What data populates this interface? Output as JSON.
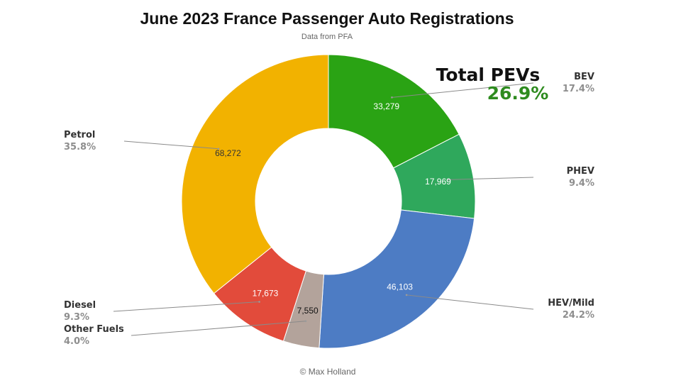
{
  "chart_data": {
    "type": "pie",
    "title": "June 2023 France Passenger Auto Registrations",
    "subtitle": "Data from PFA",
    "credit": "© Max Holland",
    "annotation": {
      "label": "Total PEVs",
      "value": "26.9%",
      "color": "#2e8b1f"
    },
    "slices": [
      {
        "name": "BEV",
        "value": 33279,
        "value_label": "33,279",
        "percent": "17.4%",
        "color": "#2aa314",
        "label_color": "#ffffff",
        "legend_side": "right"
      },
      {
        "name": "PHEV",
        "value": 17969,
        "value_label": "17,969",
        "percent": "9.4%",
        "color": "#2fa85c",
        "label_color": "#ffffff",
        "legend_side": "right"
      },
      {
        "name": "HEV/Mild",
        "value": 46103,
        "value_label": "46,103",
        "percent": "24.2%",
        "color": "#4d7cc4",
        "label_color": "#ffffff",
        "legend_side": "right"
      },
      {
        "name": "Other Fuels",
        "value": 7550,
        "value_label": "7,550",
        "percent": "4.0%",
        "color": "#b3a39b",
        "label_color": "#111111",
        "legend_side": "left"
      },
      {
        "name": "Diesel",
        "value": 17673,
        "value_label": "17,673",
        "percent": "9.3%",
        "color": "#e24b3b",
        "label_color": "#ffffff",
        "legend_side": "left"
      },
      {
        "name": "Petrol",
        "value": 68272,
        "value_label": "68,272",
        "percent": "35.8%",
        "color": "#f2b200",
        "label_color": "#333333",
        "legend_side": "left"
      }
    ]
  }
}
